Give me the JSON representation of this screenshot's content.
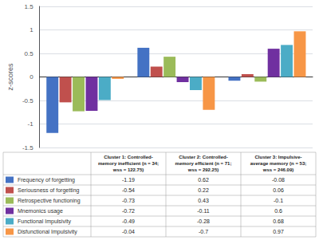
{
  "chart_data": {
    "type": "bar",
    "categories": [
      "Cluster 1: Controlled-\nmemory inefficient (n = 34;\nwss = 122.75)",
      "Cluster 2: Controlled-\nmemory efficient (n = 71;\nwss = 292.25)",
      "Cluster 3: Impulsive-\naverage memory (n = 53;\nwss = 246.09)"
    ],
    "series": [
      {
        "name": "Frequency of forgetting",
        "color": "#4472C4",
        "values": [
          -1.19,
          0.62,
          -0.08
        ]
      },
      {
        "name": "Seriousness of forgetting",
        "color": "#C0504D",
        "values": [
          -0.54,
          0.22,
          0.06
        ]
      },
      {
        "name": "Retrospective functioning",
        "color": "#9BBB59",
        "values": [
          -0.73,
          0.43,
          -0.1
        ]
      },
      {
        "name": "Mnemonics usage",
        "color": "#7030A0",
        "values": [
          -0.72,
          -0.11,
          0.6
        ]
      },
      {
        "name": "Functional Impulsivity",
        "color": "#4BACC6",
        "values": [
          -0.49,
          -0.28,
          0.68
        ]
      },
      {
        "name": "Disfunctional Impulsivity",
        "color": "#F79646",
        "values": [
          -0.04,
          -0.7,
          0.97
        ]
      }
    ],
    "ylabel": "z-scores",
    "ylim": [
      -1.5,
      1.5
    ],
    "yticks": [
      -1.5,
      -1,
      -0.5,
      0,
      0.5,
      1,
      1.5
    ],
    "grid": true,
    "legend": "lower left",
    "tick_labels": "y"
  }
}
